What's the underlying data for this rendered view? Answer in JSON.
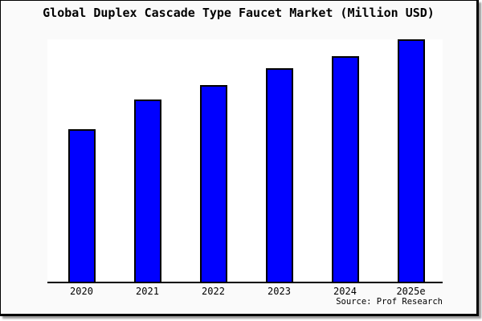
{
  "window": {
    "background": "#fafafa",
    "plot_background": "#ffffff",
    "frame_border_color": "#000000"
  },
  "header": {
    "title": "Global Duplex Cascade Type Faucet Market (Million USD)"
  },
  "footer": {
    "source": "Source: Prof Research"
  },
  "chart_data": {
    "type": "bar",
    "title": "Global Duplex Cascade Type Faucet Market (Million USD)",
    "categories": [
      "2020",
      "2021",
      "2022",
      "2023",
      "2024",
      "2025e"
    ],
    "values": [
      63,
      75,
      81,
      88,
      93,
      100
    ],
    "xlabel": "",
    "ylabel": "",
    "ylim": [
      0,
      100
    ],
    "grid": false,
    "legend": false,
    "y_axis_shown": false,
    "bar_color": "#0000ff",
    "bar_border_color": "#000000",
    "axis_color": "#000000",
    "source": "Source: Prof Research"
  }
}
